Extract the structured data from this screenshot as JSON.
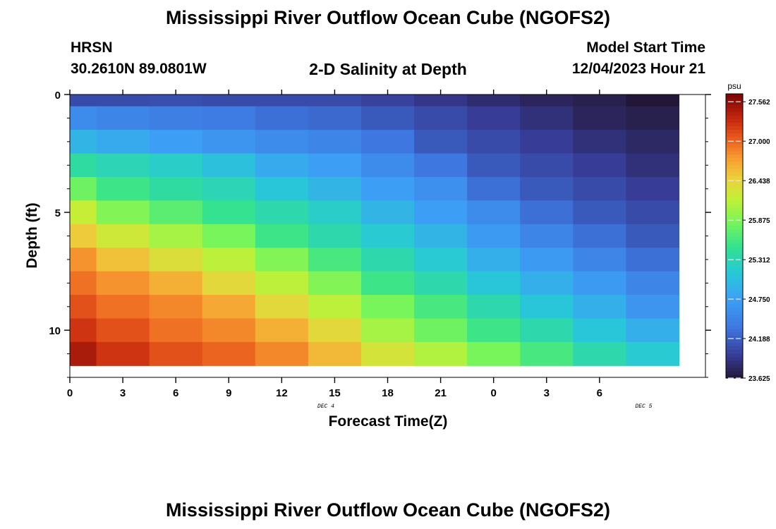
{
  "page": {
    "title": "Mississippi River Outflow Ocean Cube (NGOFS2)",
    "station": "HRSN",
    "location": "30.2610N  89.0801W",
    "subtitle": "2-D Salinity at Depth",
    "model_start_label": "Model Start Time",
    "model_start_value": "12/04/2023 Hour 21",
    "footer_title": "Mississippi River Outflow Ocean Cube (NGOFS2)"
  },
  "chart_data": {
    "type": "heatmap",
    "title": "2-D Salinity at Depth",
    "xlabel": "Forecast Time(Z)",
    "ylabel": "Depth (ft)",
    "x_ticks": [
      "0",
      "3",
      "6",
      "9",
      "12",
      "15",
      "18",
      "21",
      "0",
      "3",
      "6"
    ],
    "x_tick_hours": [
      0,
      3,
      6,
      9,
      12,
      15,
      18,
      21,
      24,
      27,
      30
    ],
    "date_labels": [
      {
        "label": "DEC 4",
        "hour": 14.5
      },
      {
        "label": "DEC 5",
        "hour": 32.5
      }
    ],
    "xlim": [
      0,
      36
    ],
    "ylim": [
      0,
      12
    ],
    "y_ticks": [
      0,
      5,
      10
    ],
    "y_minor_ticks": [
      1,
      2,
      3,
      4,
      6,
      7,
      8,
      9,
      11,
      12
    ],
    "colorbar": {
      "unit": "psu",
      "min": 23.625,
      "max": 27.675,
      "tick_values": [
        23.625,
        24.188,
        24.75,
        25.312,
        25.875,
        26.438,
        27.0,
        27.562
      ],
      "tick_labels": [
        "23.625",
        "24.188",
        "24.750",
        "25.312",
        "25.875",
        "26.438",
        "27.000",
        "27.562"
      ]
    },
    "grid": false,
    "columns_hours": [
      0,
      3,
      6,
      9,
      12,
      15,
      18,
      21,
      24,
      27,
      30,
      33
    ],
    "rows_depth_ft": [
      0,
      1,
      2,
      3,
      4,
      5,
      6,
      7,
      8,
      9,
      10,
      11
    ],
    "values": [
      [
        24.05,
        24.05,
        24.08,
        24.05,
        24.05,
        24.05,
        23.98,
        23.9,
        23.82,
        23.75,
        23.7,
        23.6
      ],
      [
        24.55,
        24.5,
        24.42,
        24.38,
        24.3,
        24.25,
        24.15,
        24.05,
        23.95,
        23.85,
        23.75,
        23.7
      ],
      [
        24.95,
        24.85,
        24.75,
        24.65,
        24.55,
        24.5,
        24.35,
        24.15,
        24.05,
        23.95,
        23.85,
        23.78
      ],
      [
        25.4,
        25.3,
        25.2,
        25.05,
        24.85,
        24.75,
        24.55,
        24.35,
        24.15,
        24.05,
        23.95,
        23.85
      ],
      [
        25.8,
        25.55,
        25.4,
        25.3,
        25.1,
        24.95,
        24.75,
        24.6,
        24.3,
        24.15,
        24.05,
        23.95
      ],
      [
        26.2,
        25.9,
        25.7,
        25.5,
        25.35,
        25.2,
        24.95,
        24.75,
        24.55,
        24.3,
        24.15,
        24.05
      ],
      [
        26.5,
        26.25,
        26.05,
        25.85,
        25.55,
        25.35,
        25.15,
        24.95,
        24.7,
        24.5,
        24.3,
        24.15
      ],
      [
        26.8,
        26.55,
        26.35,
        26.15,
        25.9,
        25.6,
        25.35,
        25.15,
        24.9,
        24.7,
        24.5,
        24.3
      ],
      [
        26.95,
        26.8,
        26.65,
        26.4,
        26.15,
        25.9,
        25.55,
        25.35,
        25.1,
        24.9,
        24.7,
        24.5
      ],
      [
        27.1,
        26.95,
        26.85,
        26.7,
        26.4,
        26.15,
        25.85,
        25.6,
        25.35,
        25.1,
        24.9,
        24.65
      ],
      [
        27.25,
        27.1,
        26.95,
        26.85,
        26.65,
        26.4,
        26.05,
        25.8,
        25.55,
        25.35,
        25.1,
        24.9
      ],
      [
        27.45,
        27.25,
        27.1,
        27.0,
        26.85,
        26.6,
        26.3,
        26.1,
        25.85,
        25.6,
        25.35,
        25.15
      ]
    ]
  }
}
